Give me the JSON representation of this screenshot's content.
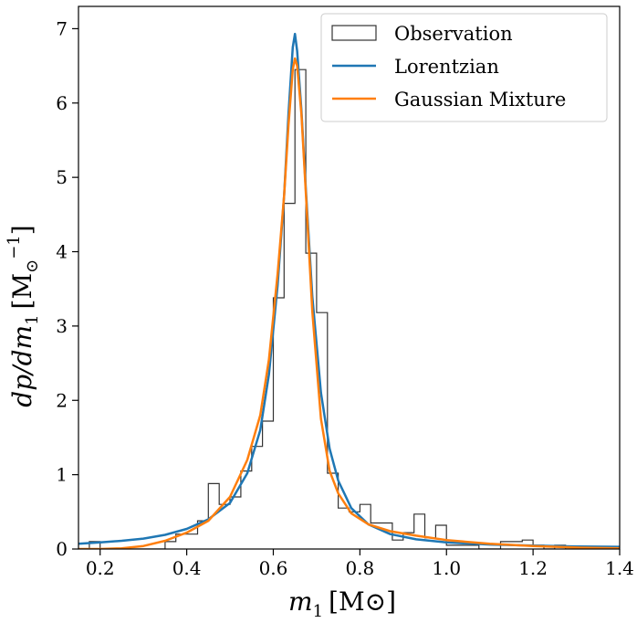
{
  "chart_data": {
    "type": "line",
    "title": "",
    "xlabel_main": "m",
    "xlabel_sub": "1",
    "xlabel_unit": "[M⊙]",
    "ylabel_text": "dp/dm",
    "ylabel_sub": "1",
    "ylabel_unit": "[M",
    "ylabel_unit_sub": "⊙",
    "ylabel_unit_sup": "−1",
    "ylabel_close": "]",
    "xlim": [
      0.15,
      1.4
    ],
    "ylim": [
      0,
      7.3
    ],
    "xticks": [
      0.2,
      0.4,
      0.6,
      0.8,
      1.0,
      1.2,
      1.4
    ],
    "xtick_labels": [
      "0.2",
      "0.4",
      "0.6",
      "0.8",
      "1.0",
      "1.2",
      "1.4"
    ],
    "yticks": [
      0,
      1,
      2,
      3,
      4,
      5,
      6,
      7
    ],
    "ytick_labels": [
      "0",
      "1",
      "2",
      "3",
      "4",
      "5",
      "6",
      "7"
    ],
    "legend_position": "top-right",
    "histogram": {
      "name": "Observation",
      "color": "#333333",
      "edges": [
        0.175,
        0.2,
        0.225,
        0.25,
        0.275,
        0.3,
        0.325,
        0.35,
        0.375,
        0.4,
        0.425,
        0.45,
        0.475,
        0.5,
        0.525,
        0.55,
        0.575,
        0.6,
        0.625,
        0.65,
        0.675,
        0.7,
        0.725,
        0.75,
        0.775,
        0.8,
        0.825,
        0.85,
        0.875,
        0.9,
        0.925,
        0.95,
        0.975,
        1.0,
        1.025,
        1.05,
        1.075,
        1.1,
        1.125,
        1.15,
        1.175,
        1.2,
        1.225,
        1.25,
        1.275,
        1.3,
        1.325
      ],
      "values": [
        0.1,
        0.0,
        0.0,
        0.0,
        0.0,
        0.0,
        0.0,
        0.1,
        0.2,
        0.2,
        0.38,
        0.88,
        0.6,
        0.7,
        1.05,
        1.38,
        1.72,
        3.38,
        4.65,
        6.45,
        3.98,
        3.18,
        1.02,
        0.55,
        0.5,
        0.6,
        0.35,
        0.35,
        0.12,
        0.22,
        0.47,
        0.15,
        0.32,
        0.05,
        0.05,
        0.05,
        0.0,
        0.0,
        0.1,
        0.1,
        0.12,
        0.05,
        0.0,
        0.05,
        0.0,
        0.0
      ]
    },
    "series": [
      {
        "name": "Lorentzian",
        "color": "#1f77b4",
        "x": [
          0.15,
          0.2,
          0.25,
          0.3,
          0.35,
          0.4,
          0.45,
          0.5,
          0.54,
          0.57,
          0.59,
          0.61,
          0.625,
          0.635,
          0.645,
          0.65,
          0.655,
          0.665,
          0.675,
          0.69,
          0.71,
          0.73,
          0.75,
          0.78,
          0.82,
          0.87,
          0.93,
          1.0,
          1.1,
          1.2,
          1.3,
          1.4
        ],
        "values": [
          0.07,
          0.09,
          0.11,
          0.14,
          0.19,
          0.27,
          0.4,
          0.62,
          1.02,
          1.6,
          2.35,
          3.55,
          4.75,
          5.85,
          6.75,
          6.93,
          6.7,
          5.9,
          4.85,
          3.4,
          2.1,
          1.35,
          0.92,
          0.55,
          0.33,
          0.2,
          0.13,
          0.09,
          0.06,
          0.045,
          0.035,
          0.03
        ]
      },
      {
        "name": "Gaussian Mixture",
        "color": "#ff7f0e",
        "x": [
          0.15,
          0.2,
          0.25,
          0.3,
          0.35,
          0.4,
          0.45,
          0.5,
          0.54,
          0.57,
          0.59,
          0.61,
          0.625,
          0.635,
          0.645,
          0.65,
          0.655,
          0.665,
          0.675,
          0.69,
          0.71,
          0.73,
          0.75,
          0.78,
          0.82,
          0.87,
          0.93,
          1.0,
          1.1,
          1.2,
          1.3,
          1.4
        ],
        "values": [
          0.0,
          0.0,
          0.01,
          0.04,
          0.11,
          0.22,
          0.38,
          0.7,
          1.2,
          1.8,
          2.55,
          3.7,
          4.75,
          5.7,
          6.45,
          6.6,
          6.5,
          5.85,
          4.8,
          3.2,
          1.75,
          1.05,
          0.75,
          0.48,
          0.33,
          0.24,
          0.18,
          0.12,
          0.07,
          0.04,
          0.02,
          0.01
        ]
      }
    ]
  }
}
